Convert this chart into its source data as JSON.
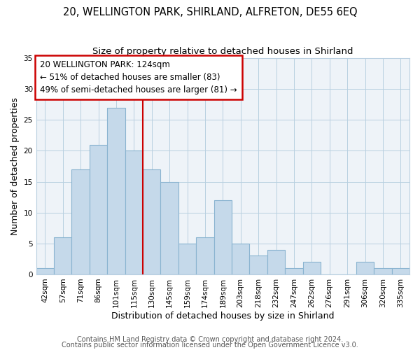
{
  "title1": "20, WELLINGTON PARK, SHIRLAND, ALFRETON, DE55 6EQ",
  "title2": "Size of property relative to detached houses in Shirland",
  "xlabel": "Distribution of detached houses by size in Shirland",
  "ylabel": "Number of detached properties",
  "categories": [
    "42sqm",
    "57sqm",
    "71sqm",
    "86sqm",
    "101sqm",
    "115sqm",
    "130sqm",
    "145sqm",
    "159sqm",
    "174sqm",
    "189sqm",
    "203sqm",
    "218sqm",
    "232sqm",
    "247sqm",
    "262sqm",
    "276sqm",
    "291sqm",
    "306sqm",
    "320sqm",
    "335sqm"
  ],
  "values": [
    1,
    6,
    17,
    21,
    27,
    20,
    17,
    15,
    5,
    6,
    12,
    5,
    3,
    4,
    1,
    2,
    0,
    0,
    2,
    1,
    1
  ],
  "bar_color": "#c5d9ea",
  "bar_edge_color": "#8ab4d0",
  "vline_x_index": 6,
  "vline_color": "#cc0000",
  "annotation_title": "20 WELLINGTON PARK: 124sqm",
  "annotation_line1": "← 51% of detached houses are smaller (83)",
  "annotation_line2": "49% of semi-detached houses are larger (81) →",
  "annotation_box_color": "#ffffff",
  "annotation_box_edge": "#cc0000",
  "plot_bg_color": "#eef3f8",
  "ylim": [
    0,
    35
  ],
  "yticks": [
    0,
    5,
    10,
    15,
    20,
    25,
    30,
    35
  ],
  "footer1": "Contains HM Land Registry data © Crown copyright and database right 2024.",
  "footer2": "Contains public sector information licensed under the Open Government Licence v3.0.",
  "title_fontsize": 10.5,
  "subtitle_fontsize": 9.5,
  "axis_label_fontsize": 9,
  "tick_fontsize": 7.5,
  "annotation_fontsize": 8.5,
  "footer_fontsize": 7
}
